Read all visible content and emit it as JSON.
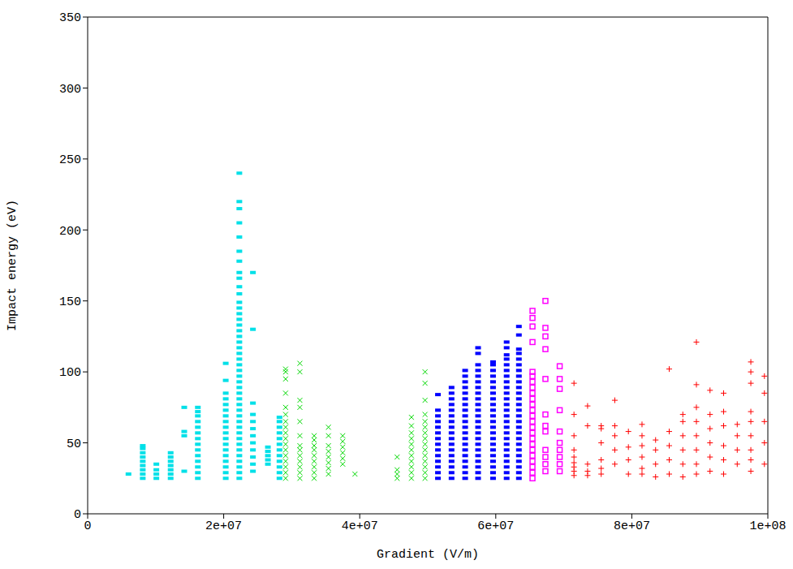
{
  "chart_data": {
    "type": "scatter",
    "x_label": "Gradient (V/m)",
    "y_label": "Impact energy (eV)",
    "xlim": [
      0,
      100000000.0
    ],
    "xticks": [
      0,
      {
        "value": 20000000.0,
        "label": "2e+07"
      },
      {
        "value": 40000000.0,
        "label": "4e+07"
      },
      {
        "value": 60000000.0,
        "label": "6e+07"
      },
      {
        "value": 80000000.0,
        "label": "8e+07"
      },
      {
        "value": 100000000.0,
        "label": "1e+08"
      }
    ],
    "ylim": [
      0,
      350
    ],
    "yticks": [
      0,
      50,
      100,
      150,
      200,
      250,
      300,
      350
    ],
    "grid": false,
    "series": [
      {
        "color": "#00e0e8",
        "marker": "dash",
        "x": [
          6000000.0,
          8100000.0,
          10100000.0,
          12200000.0,
          14200000.0,
          16200000.0,
          20300000.0,
          22300000.0,
          24300000.0,
          26500000.0,
          28200000.0
        ],
        "values": [
          [
            28
          ],
          [
            25,
            28,
            31,
            34,
            37,
            40,
            43,
            46,
            48
          ],
          [
            25,
            28,
            31,
            35
          ],
          [
            25,
            28,
            31,
            34,
            37,
            40,
            43
          ],
          [
            30,
            55,
            58,
            75
          ],
          [
            25,
            29,
            33,
            37,
            41,
            45,
            49,
            53,
            57,
            61,
            65,
            69,
            72,
            75
          ],
          [
            25,
            29,
            33,
            37,
            41,
            45,
            49,
            53,
            57,
            61,
            65,
            69,
            73,
            77,
            81,
            85,
            94,
            106
          ],
          [
            25,
            29,
            33,
            37,
            41,
            45,
            49,
            53,
            57,
            61,
            65,
            69,
            73,
            77,
            81,
            85,
            89,
            93,
            97,
            101,
            105,
            109,
            113,
            117,
            121,
            125,
            129,
            133,
            137,
            141,
            145,
            149,
            155,
            160,
            166,
            170,
            178,
            185,
            195,
            205,
            215,
            220,
            240
          ],
          [
            30,
            35,
            40,
            45,
            50,
            55,
            60,
            65,
            70,
            78,
            130,
            170
          ],
          [
            35,
            38,
            41,
            44,
            47
          ],
          [
            25,
            29,
            33,
            37,
            41,
            45,
            49,
            53,
            57,
            61,
            65,
            68
          ]
        ]
      },
      {
        "color": "#00d800",
        "marker": "x",
        "x": [
          29100000.0,
          31200000.0,
          33300000.0,
          35400000.0,
          37500000.0,
          39300000.0,
          45500000.0,
          47600000.0,
          49600000.0
        ],
        "values": [
          [
            25,
            29,
            33,
            37,
            41,
            45,
            49,
            53,
            57,
            61,
            65,
            70,
            75,
            85,
            95,
            100,
            102
          ],
          [
            25,
            29,
            33,
            37,
            41,
            45,
            48,
            55,
            65,
            75,
            80,
            100,
            106
          ],
          [
            25,
            29,
            33,
            37,
            41,
            45,
            48,
            52,
            55
          ],
          [
            28,
            32,
            36,
            40,
            44,
            48,
            55,
            61
          ],
          [
            35,
            39,
            43,
            47,
            51,
            55
          ],
          [
            28
          ],
          [
            25,
            28,
            31,
            40
          ],
          [
            25,
            29,
            33,
            37,
            41,
            45,
            49,
            53,
            57,
            62,
            68
          ],
          [
            25,
            29,
            33,
            37,
            41,
            45,
            49,
            53,
            57,
            61,
            65,
            70,
            80,
            92,
            100
          ]
        ]
      },
      {
        "color": "#0000ff",
        "marker": "dash",
        "x": [
          51500000.0,
          53500000.0,
          55500000.0,
          57400000.0,
          59600000.0,
          61600000.0,
          63400000.0
        ],
        "values": [
          [
            25,
            29,
            33,
            37,
            41,
            45,
            49,
            53,
            57,
            61,
            65,
            69,
            73,
            84
          ],
          [
            25,
            29,
            33,
            37,
            41,
            45,
            49,
            53,
            57,
            61,
            65,
            69,
            73,
            77,
            81,
            85,
            89
          ],
          [
            25,
            29,
            33,
            37,
            41,
            45,
            49,
            53,
            57,
            61,
            65,
            69,
            73,
            77,
            81,
            85,
            89,
            93,
            97,
            101
          ],
          [
            25,
            29,
            33,
            37,
            41,
            45,
            49,
            53,
            57,
            61,
            65,
            69,
            73,
            77,
            81,
            85,
            89,
            93,
            97,
            101,
            105,
            113,
            117
          ],
          [
            25,
            29,
            33,
            37,
            41,
            45,
            49,
            53,
            57,
            61,
            65,
            69,
            73,
            77,
            81,
            85,
            89,
            93,
            97,
            101,
            105,
            107
          ],
          [
            25,
            29,
            33,
            37,
            41,
            45,
            49,
            53,
            57,
            61,
            65,
            69,
            73,
            77,
            81,
            85,
            89,
            93,
            97,
            101,
            105,
            109,
            112,
            117,
            121
          ],
          [
            25,
            29,
            33,
            37,
            41,
            45,
            49,
            53,
            57,
            61,
            65,
            69,
            73,
            77,
            81,
            85,
            89,
            93,
            97,
            101,
            105,
            109,
            113,
            116,
            126,
            132
          ]
        ]
      },
      {
        "color": "#ff00ff",
        "marker": "square",
        "x": [
          65400000.0,
          67300000.0,
          69400000.0
        ],
        "values": [
          [
            25,
            29,
            33,
            37,
            41,
            45,
            49,
            53,
            57,
            61,
            65,
            69,
            73,
            77,
            81,
            85,
            89,
            93,
            97,
            100,
            121,
            132,
            138,
            143
          ],
          [
            30,
            35,
            40,
            45,
            58,
            62,
            70,
            95,
            116,
            125,
            131,
            150
          ],
          [
            30,
            35,
            40,
            45,
            50,
            58,
            73,
            88,
            95,
            104
          ]
        ]
      },
      {
        "color": "#ff0000",
        "marker": "plus",
        "x": [
          71500000.0,
          73500000.0,
          75500000.0,
          77500000.0,
          79500000.0,
          81500000.0,
          83500000.0,
          85500000.0,
          87500000.0,
          89500000.0,
          91500000.0,
          93500000.0,
          95500000.0,
          97500000.0,
          99500000.0
        ],
        "values": [
          [
            27,
            30,
            33,
            36,
            40,
            45,
            55,
            70,
            92
          ],
          [
            27,
            30,
            35,
            62,
            76
          ],
          [
            28,
            32,
            38,
            50,
            60,
            62
          ],
          [
            35,
            45,
            55,
            62,
            80
          ],
          [
            28,
            38,
            47,
            58
          ],
          [
            28,
            32,
            40,
            48,
            55,
            63
          ],
          [
            26,
            35,
            45,
            52
          ],
          [
            28,
            38,
            48,
            58,
            102
          ],
          [
            26,
            35,
            45,
            55,
            65,
            70
          ],
          [
            28,
            35,
            45,
            55,
            65,
            75,
            91,
            121
          ],
          [
            30,
            40,
            50,
            60,
            70,
            87
          ],
          [
            28,
            38,
            48,
            62,
            72,
            85
          ],
          [
            35,
            45,
            55,
            63
          ],
          [
            30,
            38,
            45,
            55,
            65,
            72,
            92,
            100,
            107
          ],
          [
            35,
            50,
            65,
            85,
            97
          ]
        ]
      }
    ]
  }
}
